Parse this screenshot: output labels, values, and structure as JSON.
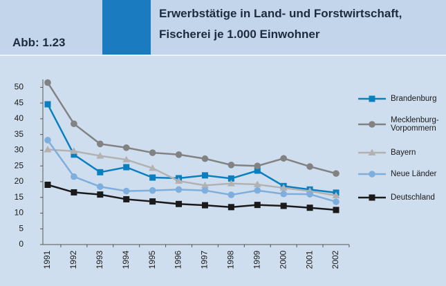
{
  "chart_data": {
    "type": "line",
    "label": "Abb: 1.23",
    "title": [
      "Erwerbstätige in Land- und Forstwirtschaft,",
      "Fischerei je 1.000 Einwohner"
    ],
    "categories": [
      "1991",
      "1992",
      "1993",
      "1994",
      "1995",
      "1996",
      "1997",
      "1998",
      "1999",
      "2000",
      "2001",
      "2002"
    ],
    "series": [
      {
        "name": "Brandenburg",
        "color": "#0a7fc0",
        "marker": "square",
        "values": [
          44.6,
          28.6,
          23,
          24.6,
          21.3,
          21.1,
          22,
          21,
          23.5,
          18.6,
          17.5,
          16.5
        ]
      },
      {
        "name": "Mecklenburg-Vorpommern",
        "color": "#828282",
        "marker": "circle",
        "values": [
          51.5,
          38.4,
          32,
          30.8,
          29.2,
          28.6,
          27.3,
          25.3,
          25,
          27.4,
          24.8,
          22.6
        ]
      },
      {
        "name": "Bayern",
        "color": "#b2b2b2",
        "marker": "triangle",
        "values": [
          30.2,
          29.7,
          28.2,
          27,
          24.3,
          20.2,
          18.8,
          19.4,
          19.1,
          18,
          17,
          15.6
        ]
      },
      {
        "name": "Neue Länder",
        "color": "#7eaedb",
        "marker": "circle",
        "values": [
          33.2,
          21.6,
          18.4,
          17,
          17.2,
          17.5,
          17.2,
          15.8,
          17.2,
          16.1,
          16,
          13.6
        ]
      },
      {
        "name": "Deutschland",
        "color": "#1a1a1a",
        "marker": "square",
        "values": [
          19,
          16.6,
          15.9,
          14.4,
          13.7,
          12.9,
          12.5,
          11.9,
          12.6,
          12.3,
          11.7,
          11
        ]
      }
    ],
    "ylim": [
      0,
      52.5
    ],
    "yticks": [
      0,
      5,
      10,
      15,
      20,
      25,
      30,
      35,
      40,
      45,
      50
    ],
    "grid": false
  }
}
